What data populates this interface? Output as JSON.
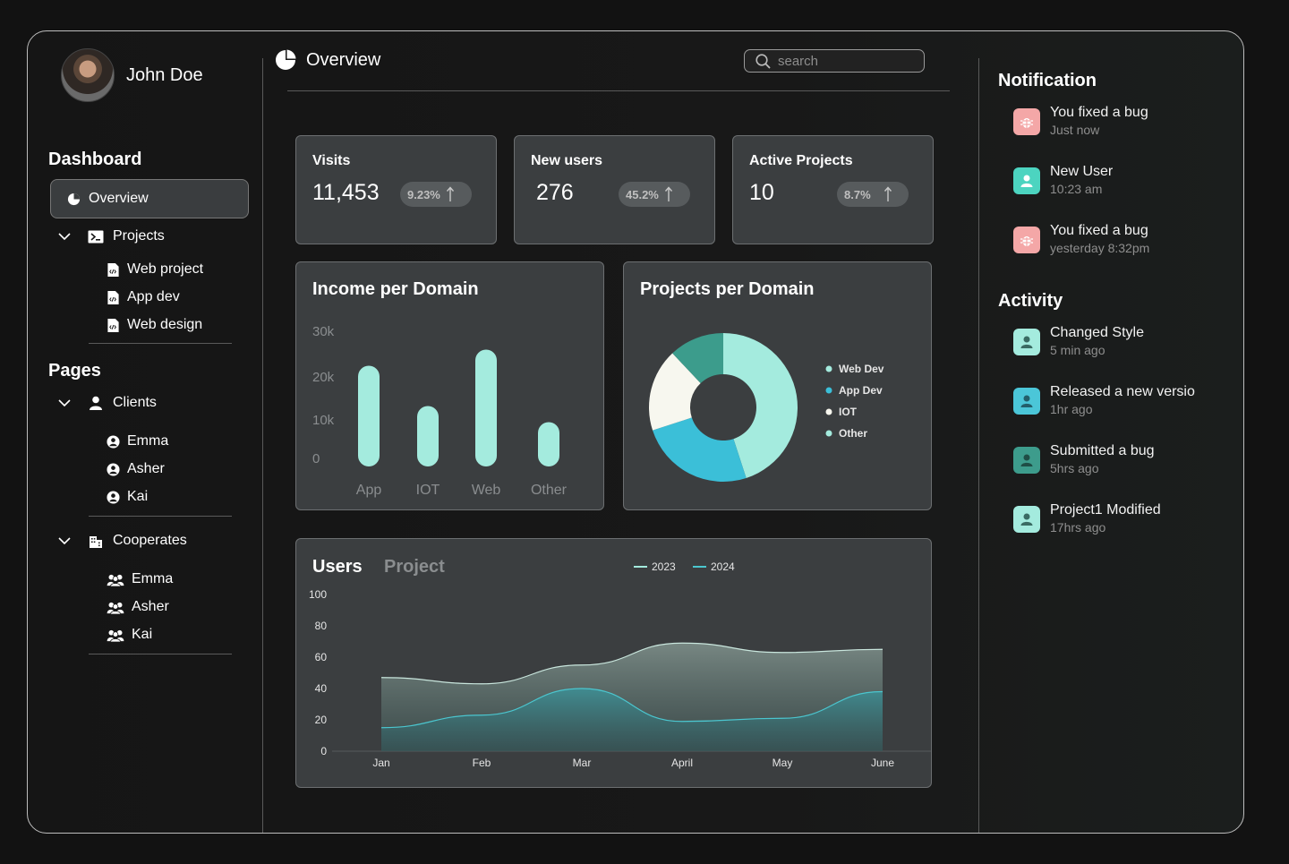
{
  "profile": {
    "name": "John Doe"
  },
  "sidebar": {
    "dashboard_title": "Dashboard",
    "overview_label": "Overview",
    "projects": {
      "label": "Projects",
      "items": [
        "Web project",
        "App dev",
        "Web design"
      ]
    },
    "pages_title": "Pages",
    "clients": {
      "label": "Clients",
      "items": [
        "Emma",
        "Asher",
        "Kai"
      ]
    },
    "cooperates": {
      "label": "Cooperates",
      "items": [
        "Emma",
        "Asher",
        "Kai"
      ]
    }
  },
  "header": {
    "title": "Overview",
    "search_placeholder": "search"
  },
  "stats": [
    {
      "title": "Visits",
      "value": "11,453",
      "badge": "9.23%"
    },
    {
      "title": "New users",
      "value": "276",
      "badge": "45.2%"
    },
    {
      "title": "Active Projects",
      "value": "10",
      "badge": "8.7%"
    }
  ],
  "income_chart": {
    "title": "Income per Domain",
    "chart_data": {
      "type": "bar",
      "categories": [
        "App",
        "IOT",
        "Web",
        "Other"
      ],
      "values": [
        25,
        15,
        29,
        11
      ],
      "yticks": [
        "30k",
        "20k",
        "10k",
        "0"
      ],
      "ylim": [
        0,
        32
      ],
      "color": "#a4ebde"
    }
  },
  "projects_chart": {
    "title": "Projects per Domain",
    "chart_data": {
      "type": "pie",
      "labels": [
        "Web Dev",
        "App Dev",
        "IOT",
        "Other"
      ],
      "values": [
        45,
        25,
        18,
        12
      ],
      "colors": [
        "#a4ebde",
        "#3bbfd8",
        "#f7f7ef",
        "#3c9c8c"
      ]
    }
  },
  "users_chart": {
    "tab_active": "Users",
    "tab_inactive": "Project",
    "chart_data": {
      "type": "area",
      "categories": [
        "Jan",
        "Feb",
        "Mar",
        "April",
        "May",
        "June"
      ],
      "yticks": [
        100,
        80,
        60,
        40,
        20,
        0
      ],
      "ylim": [
        0,
        100
      ],
      "series": [
        {
          "name": "2023",
          "values": [
            47,
            43,
            55,
            69,
            63,
            65
          ],
          "color": "#c9e6dd"
        },
        {
          "name": "2024",
          "values": [
            15,
            23,
            40,
            19,
            21,
            38
          ],
          "color": "#4bc6cf"
        }
      ]
    }
  },
  "notifications": {
    "title": "Notification",
    "items": [
      {
        "title": "You fixed a bug",
        "time": "Just now",
        "icon": "bug-icon",
        "color": "#f4a7a7"
      },
      {
        "title": "New User",
        "time": "10:23 am",
        "icon": "user-icon",
        "color": "#4cd4c0"
      },
      {
        "title": "You fixed a bug",
        "time": "yesterday 8:32pm",
        "icon": "bug-icon",
        "color": "#f4a7a7"
      }
    ]
  },
  "activity": {
    "title": "Activity",
    "items": [
      {
        "title": "Changed Style",
        "time": "5 min ago",
        "color": "#a4ebde"
      },
      {
        "title": "Released a new versio",
        "time": "1hr ago",
        "color": "#4bc6d8"
      },
      {
        "title": "Submitted a bug",
        "time": "5hrs ago",
        "color": "#3d9c8c"
      },
      {
        "title": "Project1 Modified",
        "time": "17hrs ago",
        "color": "#a4ebde"
      }
    ]
  }
}
